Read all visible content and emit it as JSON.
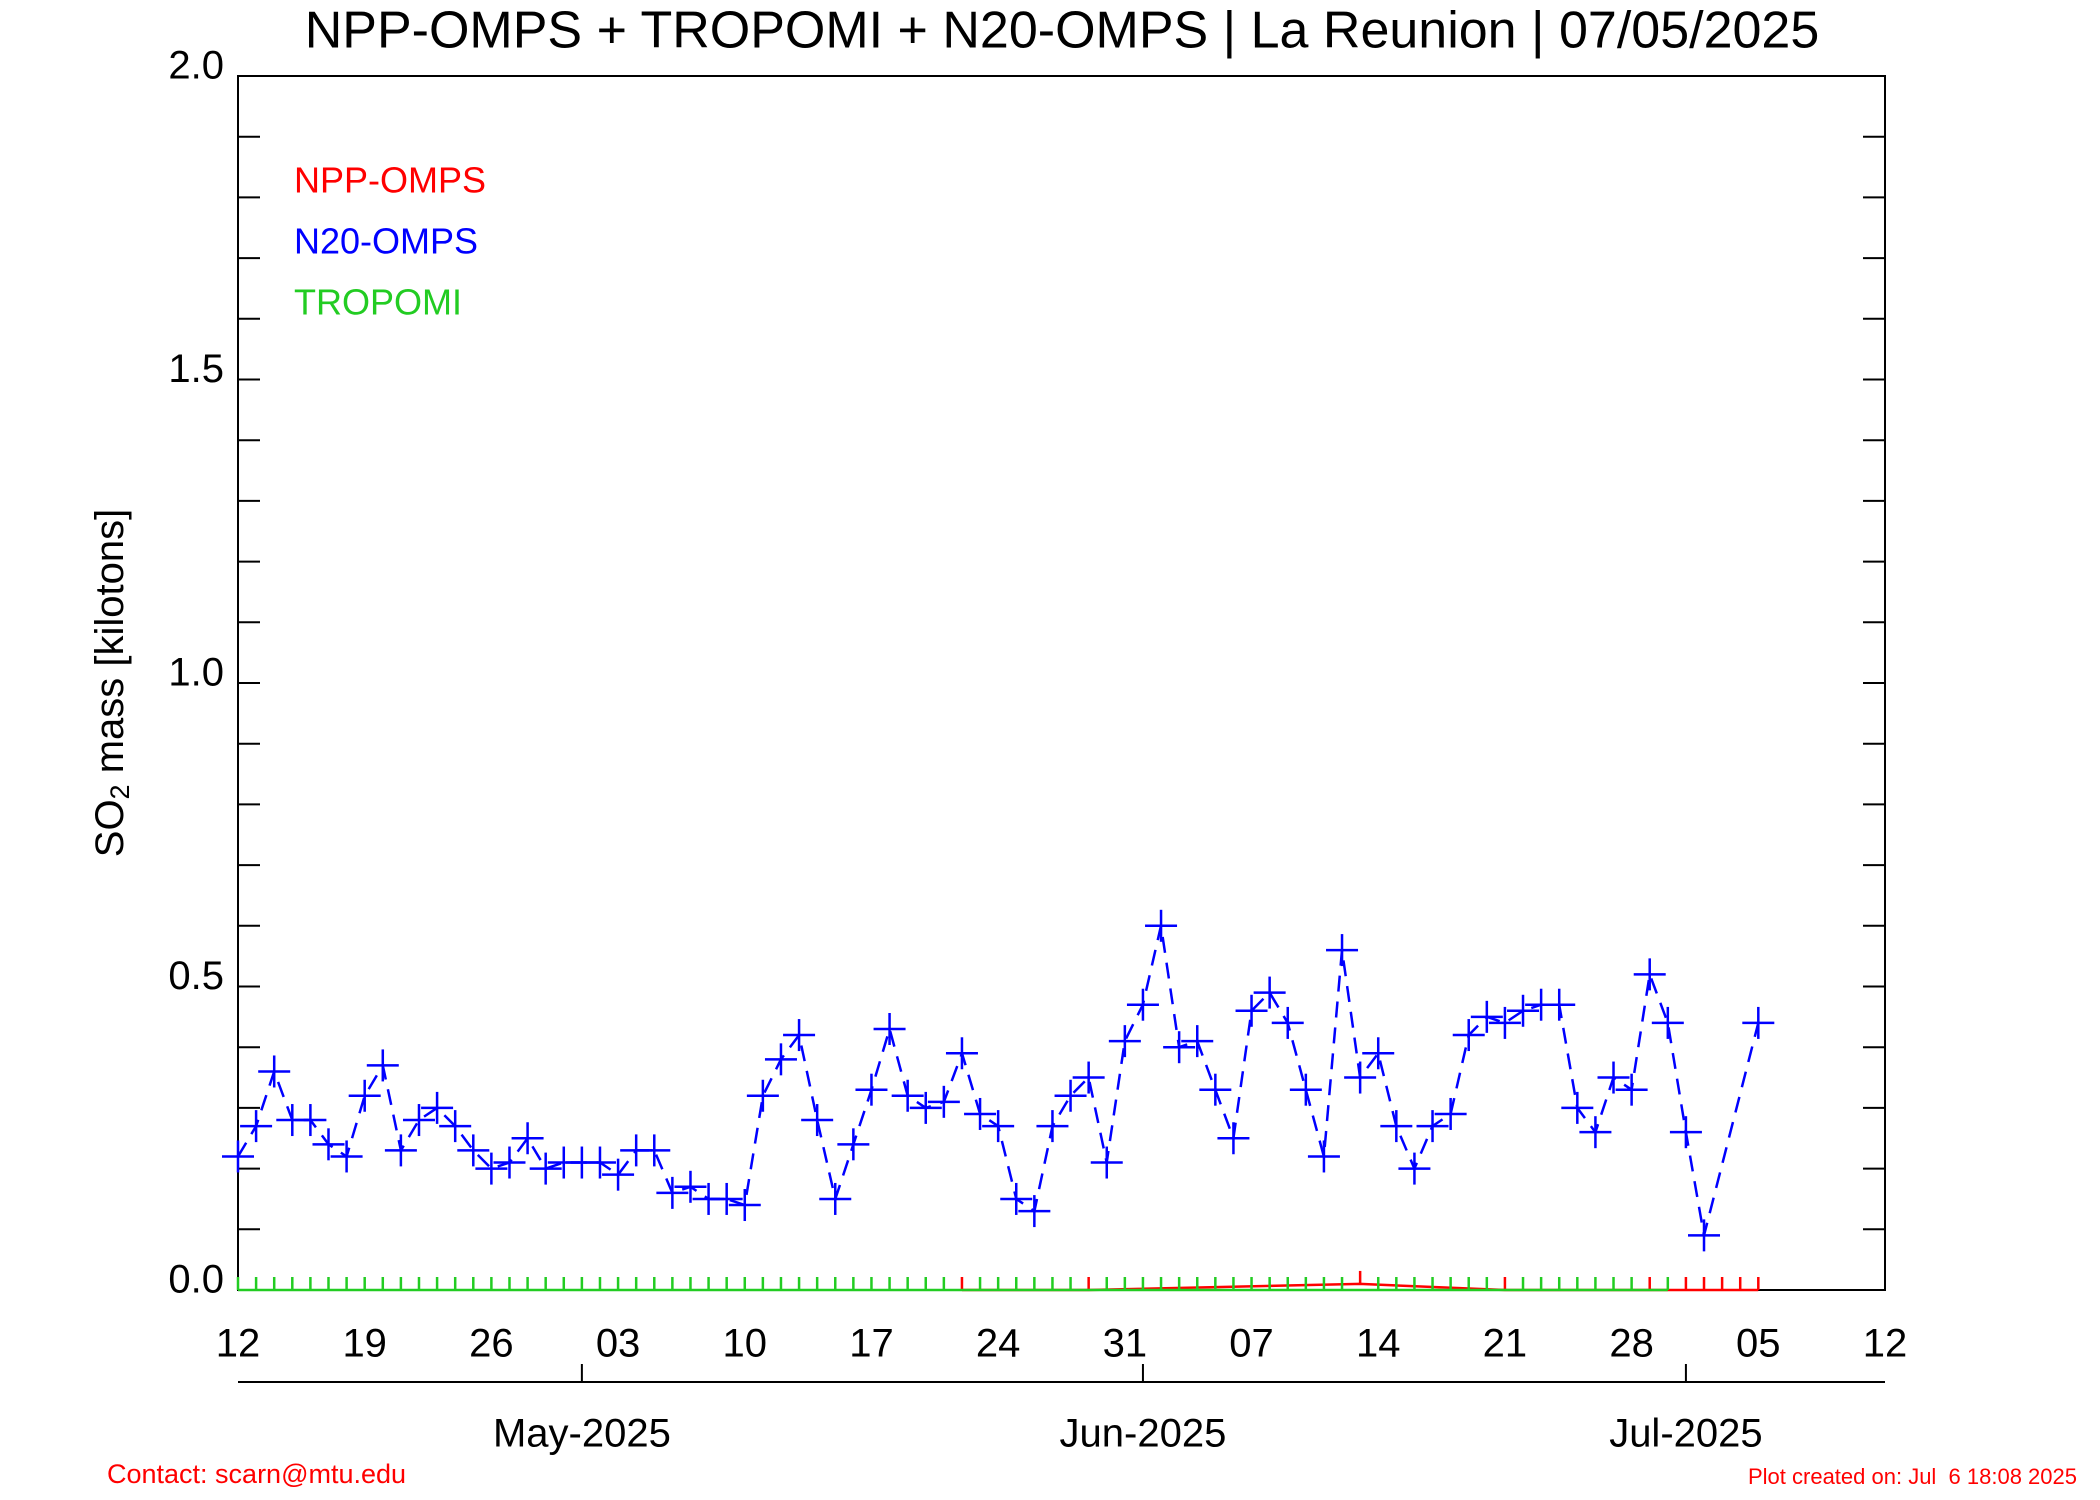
{
  "chart_data": {
    "type": "line",
    "title": "NPP-OMPS + TROPOMI + N20-OMPS | La Reunion | 07/05/2025",
    "ylabel": {
      "main": "SO",
      "sub": "2",
      "rest": " mass [kilotons]"
    },
    "xlim": [
      0,
      91
    ],
    "xticks": [
      {
        "value": 0,
        "label": "12"
      },
      {
        "value": 7,
        "label": "19"
      },
      {
        "value": 14,
        "label": "26"
      },
      {
        "value": 21,
        "label": "03"
      },
      {
        "value": 28,
        "label": "10"
      },
      {
        "value": 35,
        "label": "17"
      },
      {
        "value": 42,
        "label": "24"
      },
      {
        "value": 49,
        "label": "31"
      },
      {
        "value": 56,
        "label": "07"
      },
      {
        "value": 63,
        "label": "14"
      },
      {
        "value": 70,
        "label": "21"
      },
      {
        "value": 77,
        "label": "28"
      },
      {
        "value": 84,
        "label": "05"
      },
      {
        "value": 91,
        "label": "12"
      }
    ],
    "month_ticks": [
      {
        "value": 19,
        "label": "May-2025"
      },
      {
        "value": 50,
        "label": "Jun-2025"
      },
      {
        "value": 80,
        "label": "Jul-2025"
      }
    ],
    "ylim": [
      0,
      2
    ],
    "yticks": [
      {
        "value": 0,
        "label": "0.0"
      },
      {
        "value": 0.5,
        "label": "0.5"
      },
      {
        "value": 1,
        "label": "1.0"
      },
      {
        "value": 1.5,
        "label": "1.5"
      },
      {
        "value": 2,
        "label": "2.0"
      }
    ],
    "y_minor_ticks": [
      0.1,
      0.2,
      0.3,
      0.4,
      0.6,
      0.7,
      0.8,
      0.9,
      1.1,
      1.2,
      1.3,
      1.4,
      1.6,
      1.7,
      1.8,
      1.9
    ],
    "series": [
      {
        "name": "NPP-OMPS",
        "color": "#ff0000",
        "marker": "tick",
        "x": [
          40,
          47,
          62,
          70,
          78,
          80,
          81,
          82,
          83,
          84
        ],
        "values": [
          0,
          0,
          0.01,
          0,
          0,
          0,
          0,
          0,
          0,
          0
        ]
      },
      {
        "name": "N20-OMPS",
        "color": "#0000ff",
        "marker": "plus",
        "x": [
          0,
          1,
          2,
          3,
          4,
          5,
          6,
          7,
          8,
          9,
          10,
          11,
          12,
          13,
          14,
          15,
          16,
          17,
          18,
          19,
          20,
          21,
          22,
          23,
          24,
          25,
          26,
          27,
          28,
          29,
          30,
          31,
          32,
          33,
          34,
          35,
          36,
          37,
          38,
          39,
          40,
          41,
          42,
          43,
          44,
          45,
          46,
          47,
          48,
          49,
          50,
          51,
          52,
          53,
          54,
          55,
          56,
          57,
          58,
          59,
          60,
          61,
          62,
          63,
          64,
          65,
          66,
          67,
          68,
          69,
          70,
          71,
          72,
          73,
          74,
          75,
          76,
          77,
          78,
          79,
          80,
          81,
          84
        ],
        "values": [
          0.22,
          0.27,
          0.36,
          0.28,
          0.28,
          0.24,
          0.22,
          0.32,
          0.37,
          0.23,
          0.28,
          0.3,
          0.27,
          0.23,
          0.2,
          0.21,
          0.25,
          0.2,
          0.21,
          0.21,
          0.21,
          0.19,
          0.23,
          0.23,
          0.16,
          0.17,
          0.15,
          0.15,
          0.14,
          0.32,
          0.38,
          0.42,
          0.28,
          0.15,
          0.24,
          0.33,
          0.43,
          0.32,
          0.3,
          0.31,
          0.39,
          0.29,
          0.27,
          0.15,
          0.13,
          0.27,
          0.32,
          0.35,
          0.21,
          0.41,
          0.47,
          0.6,
          0.4,
          0.41,
          0.33,
          0.25,
          0.46,
          0.49,
          0.44,
          0.33,
          0.22,
          0.56,
          0.35,
          0.39,
          0.27,
          0.2,
          0.27,
          0.29,
          0.42,
          0.45,
          0.44,
          0.46,
          0.47,
          0.47,
          0.3,
          0.26,
          0.35,
          0.33,
          0.52,
          0.44,
          0.26,
          0.09,
          0.44
        ]
      },
      {
        "name": "TROPOMI",
        "color": "#22cc22",
        "marker": "tick",
        "x": [
          0,
          1,
          2,
          3,
          4,
          5,
          6,
          7,
          8,
          9,
          10,
          11,
          12,
          13,
          14,
          15,
          16,
          17,
          18,
          19,
          20,
          21,
          22,
          23,
          24,
          25,
          26,
          27,
          28,
          29,
          30,
          31,
          32,
          33,
          34,
          35,
          36,
          37,
          38,
          39,
          41,
          42,
          43,
          44,
          45,
          46,
          48,
          49,
          50,
          51,
          52,
          53,
          54,
          55,
          56,
          57,
          58,
          59,
          60,
          61,
          63,
          64,
          65,
          66,
          67,
          68,
          69,
          71,
          72,
          73,
          74,
          75,
          76,
          77,
          79
        ],
        "values": [
          0,
          0,
          0,
          0,
          0,
          0,
          0,
          0,
          0,
          0,
          0,
          0,
          0,
          0,
          0,
          0,
          0,
          0,
          0,
          0,
          0,
          0,
          0,
          0,
          0,
          0,
          0,
          0,
          0,
          0,
          0,
          0,
          0,
          0,
          0,
          0,
          0,
          0,
          0,
          0,
          0,
          0,
          0,
          0,
          0,
          0,
          0,
          0,
          0,
          0,
          0,
          0,
          0,
          0,
          0,
          0,
          0,
          0,
          0,
          0,
          0,
          0,
          0,
          0,
          0,
          0,
          0,
          0,
          0,
          0,
          0,
          0,
          0,
          0,
          0
        ]
      }
    ],
    "footer_left": "Contact: scarn@mtu.edu",
    "footer_right": "Plot created on: Jul  6 18:08 2025"
  }
}
